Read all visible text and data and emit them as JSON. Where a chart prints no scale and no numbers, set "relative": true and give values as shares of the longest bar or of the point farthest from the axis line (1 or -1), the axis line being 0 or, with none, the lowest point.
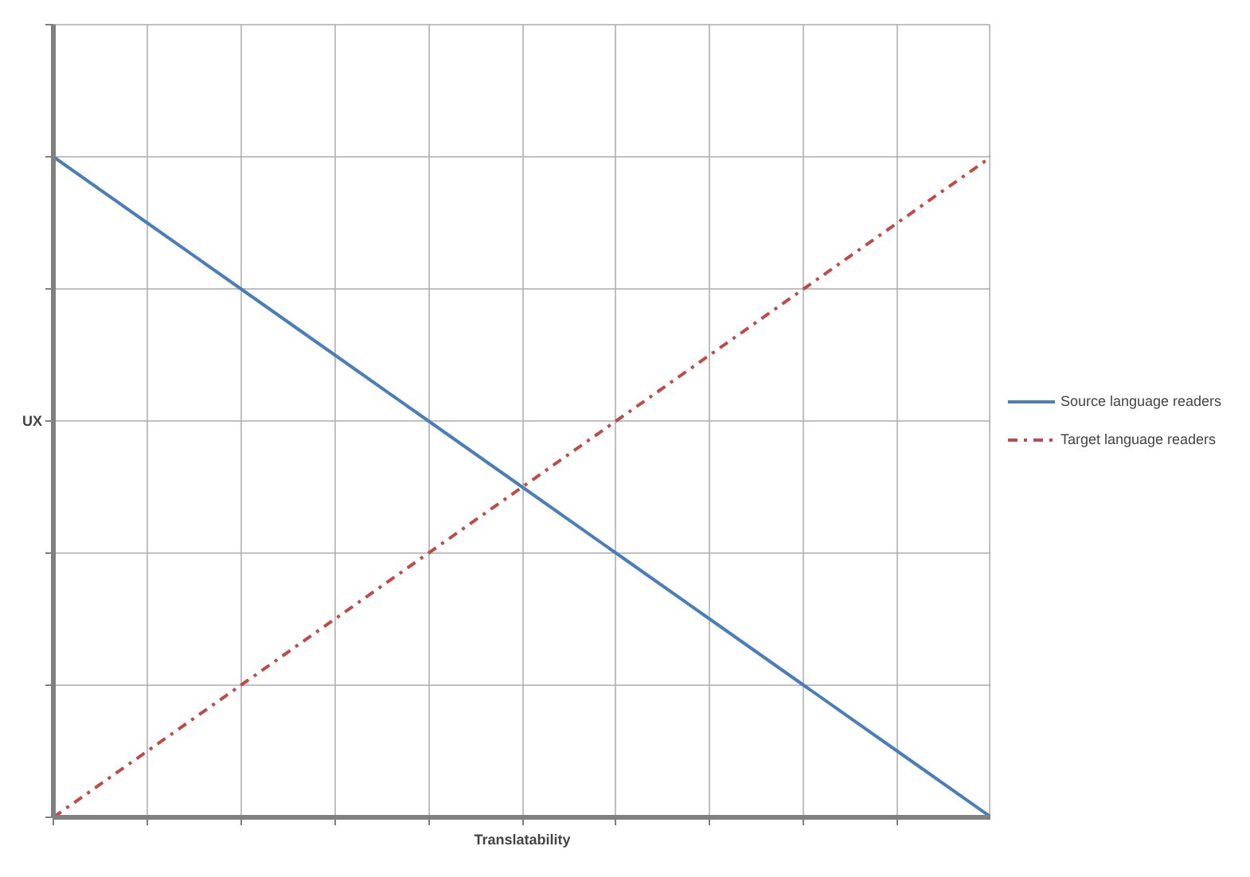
{
  "chart_data": {
    "type": "line",
    "relative": true,
    "xlabel": "Translatability",
    "ylabel": "UX",
    "categories": [
      null,
      null,
      null,
      null,
      null,
      null,
      null,
      null,
      null,
      null,
      null
    ],
    "series": [
      {
        "name": "Source language readers",
        "color": "#4a7ebb",
        "line_style": "solid",
        "values": [
          1,
          0.9,
          0.8,
          0.7,
          0.6,
          0.5,
          0.4,
          0.3,
          0.2,
          0.1,
          0
        ]
      },
      {
        "name": "Target language readers",
        "color": "#be4b48",
        "line_style": "dashdot",
        "values": [
          0,
          0.1,
          0.2,
          0.3,
          0.4,
          0.5,
          0.6,
          0.7,
          0.8,
          0.9,
          1
        ]
      }
    ],
    "grid": true,
    "legend": "right",
    "marker": "none",
    "tick_labels": false
  }
}
